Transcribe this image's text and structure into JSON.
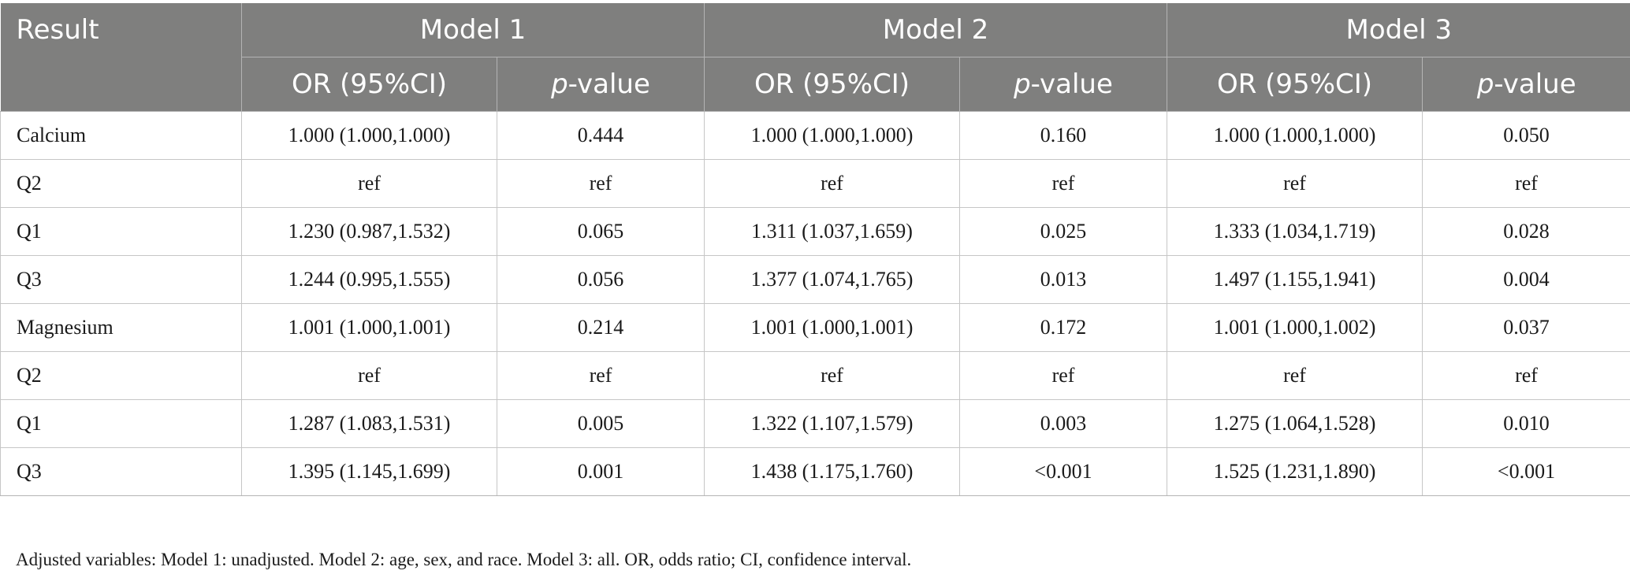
{
  "table": {
    "corner_label": "Result",
    "groups": [
      "Model 1",
      "Model 2",
      "Model 3"
    ],
    "sub_headers": {
      "or_label": "OR (95%CI)",
      "p_italic": "p",
      "p_rest": "-value"
    },
    "rows": [
      {
        "label": "Calcium",
        "cells": [
          "1.000 (1.000,1.000)",
          "0.444",
          "1.000 (1.000,1.000)",
          "0.160",
          "1.000 (1.000,1.000)",
          "0.050"
        ]
      },
      {
        "label": "Q2",
        "cells": [
          "ref",
          "ref",
          "ref",
          "ref",
          "ref",
          "ref"
        ]
      },
      {
        "label": "Q1",
        "cells": [
          "1.230 (0.987,1.532)",
          "0.065",
          "1.311 (1.037,1.659)",
          "0.025",
          "1.333 (1.034,1.719)",
          "0.028"
        ]
      },
      {
        "label": "Q3",
        "cells": [
          "1.244 (0.995,1.555)",
          "0.056",
          "1.377 (1.074,1.765)",
          "0.013",
          "1.497 (1.155,1.941)",
          "0.004"
        ]
      },
      {
        "label": "Magnesium",
        "cells": [
          "1.001 (1.000,1.001)",
          "0.214",
          "1.001 (1.000,1.001)",
          "0.172",
          "1.001 (1.000,1.002)",
          "0.037"
        ]
      },
      {
        "label": "Q2",
        "cells": [
          "ref",
          "ref",
          "ref",
          "ref",
          "ref",
          "ref"
        ]
      },
      {
        "label": "Q1",
        "cells": [
          "1.287 (1.083,1.531)",
          "0.005",
          "1.322 (1.107,1.579)",
          "0.003",
          "1.275 (1.064,1.528)",
          "0.010"
        ]
      },
      {
        "label": "Q3",
        "cells": [
          "1.395 (1.145,1.699)",
          "0.001",
          "1.438 (1.175,1.760)",
          "<0.001",
          "1.525 (1.231,1.890)",
          "<0.001"
        ]
      }
    ]
  },
  "footnote": "Adjusted variables: Model 1: unadjusted. Model 2: age, sex, and race. Model 3: all. OR, odds ratio; CI, confidence interval.",
  "colors": {
    "header_bg": "#7f7f7e",
    "header_text": "#ffffff",
    "grid": "#c6c6c6"
  }
}
